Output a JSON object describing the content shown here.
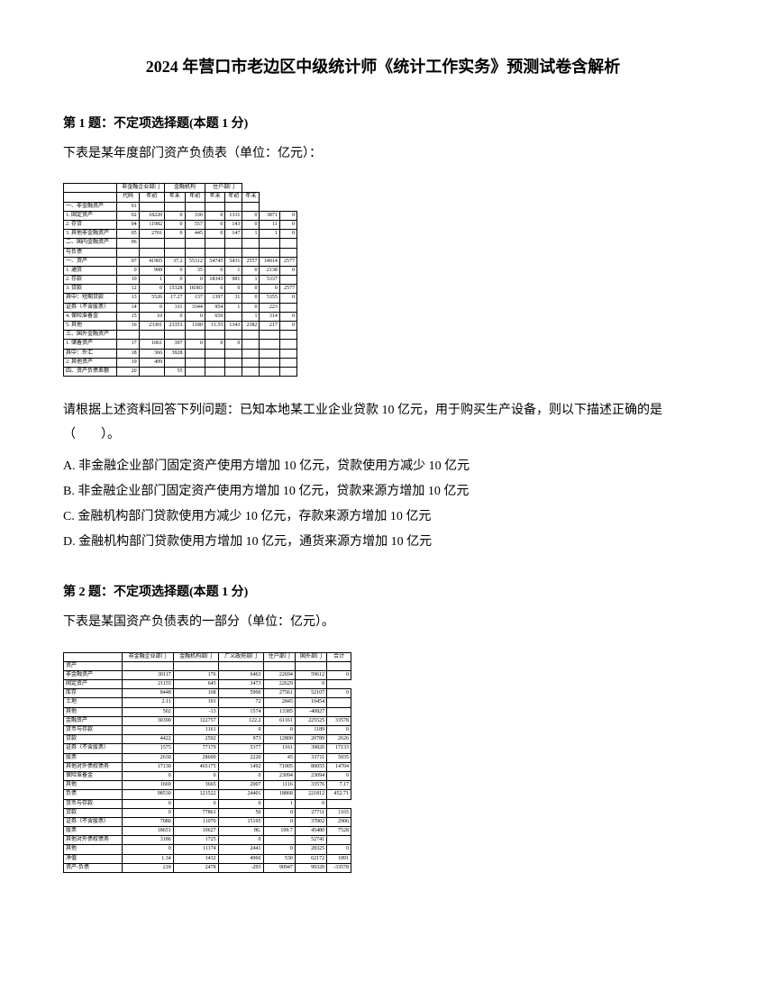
{
  "title": "2024 年营口市老边区中级统计师《统计工作实务》预测试卷含解析",
  "q1": {
    "header": "第 1 题：不定项选择题(本题 1 分)",
    "intro": "下表是某年度部门资产负债表（单位：亿元）：",
    "prompt": "请根据上述资料回答下列问题：已知本地某工业企业贷款 10 亿元，用于购买生产设备，则以下描述正确的是（　　）。",
    "optA": "A. 非金融企业部门固定资产使用方增加 10 亿元，贷款使用方减少 10 亿元",
    "optB": "B. 非金融企业部门固定资产使用方增加 10 亿元，贷款来源方增加 10 亿元",
    "optC": "C. 金融机构部门贷款使用方减少 10 亿元，存款来源方增加 10 亿元",
    "optD": "D. 金融机构部门贷款使用方增加 10 亿元，通货来源方增加 10 亿元",
    "table": {
      "headers_top": [
        "",
        "非金融企业部门",
        "金融机构",
        "住户部门"
      ],
      "headers_sub": [
        "",
        "代码",
        "年初",
        "年末",
        "年初",
        "年末",
        "年初",
        "年末"
      ],
      "rows": [
        [
          "一、非金融资产",
          "01",
          "",
          "",
          "",
          "",
          "",
          ""
        ],
        [
          "1. 固定资产",
          "02",
          "18220",
          "0",
          "330",
          "0",
          "1331",
          "0",
          "3871",
          "0"
        ],
        [
          "2. 存货",
          "04",
          "11982",
          "0",
          "557",
          "0",
          "143",
          "0",
          "11",
          "0"
        ],
        [
          "3. 其他非金融资产",
          "05",
          "2701",
          "0",
          "445",
          "0",
          "147",
          "1",
          "1",
          "0"
        ],
        [
          "二、国内金融资产",
          "06",
          "",
          "",
          "",
          "",
          "",
          "",
          "",
          ""
        ],
        [
          "与负债",
          "",
          "",
          "",
          "",
          "",
          "",
          "",
          "",
          ""
        ],
        [
          "一、资产",
          "07",
          "41905",
          "37.2",
          "55312",
          "54745",
          "5431",
          "2557",
          "14914",
          "2577"
        ],
        [
          "1. 通货",
          "0",
          "908",
          "0",
          "35",
          "0",
          "1",
          "0",
          "2138",
          "0"
        ],
        [
          "2. 存款",
          "10",
          "1",
          "0",
          "0",
          "18343",
          "981",
          "1",
          "5337",
          ""
        ],
        [
          "3. 贷款",
          "12",
          "0",
          "15328",
          "18383",
          "0",
          "0",
          "0",
          "0",
          "2577"
        ],
        [
          " 其中：短期贷款",
          "13",
          "5526",
          "17.27",
          "137",
          "1397",
          "31",
          "0",
          "5355",
          "0"
        ],
        [
          "  证券（不含股票）",
          "14",
          "0",
          "311",
          "3344",
          "954",
          "1",
          "0",
          "223",
          ""
        ],
        [
          "4. 保险准备金",
          "15",
          "10",
          "0",
          "0",
          "659",
          "",
          "1",
          "314",
          "0"
        ],
        [
          "5. 其他",
          "16",
          "23301",
          "23353",
          "1180",
          "11.55",
          "1343",
          "2382",
          "217",
          "0"
        ],
        [
          "三、国外金融资产",
          "",
          "",
          "",
          "",
          "",
          "",
          "",
          "",
          ""
        ],
        [
          "1. 储备资产",
          "17",
          "1061",
          "397",
          "0",
          "0",
          "0",
          "",
          "",
          ""
        ],
        [
          " 其中：外汇",
          "18",
          "366",
          "3928",
          "",
          "",
          "",
          "",
          "",
          ""
        ],
        [
          "2. 其他资产",
          "19",
          "499",
          "",
          "",
          "",
          "",
          "",
          "",
          ""
        ],
        [
          "四、资产负债差额",
          "20",
          "",
          "55",
          "",
          "",
          "",
          "",
          "",
          ""
        ]
      ]
    }
  },
  "q2": {
    "header": "第 2 题：不定项选择题(本题 1 分)",
    "intro": "下表是某国资产负债表的一部分（单位：亿元）。",
    "table": {
      "headers": [
        "",
        "非金融企业部门",
        "金融机构部门",
        "广义政府部门",
        "住户部门",
        "国外部门",
        "合计"
      ],
      "rows": [
        [
          "资产",
          "",
          "",
          "",
          "",
          "",
          ""
        ],
        [
          "非金融资产",
          "30117",
          "176",
          "6463",
          "22694",
          "59612",
          "0"
        ],
        [
          " 固定资产",
          "21155",
          "645",
          "3473",
          "22629",
          "0"
        ],
        [
          " 库存",
          "8448",
          "168",
          "5900",
          "27561",
          "52107",
          "0"
        ],
        [
          " 土地",
          "2.11",
          "191",
          "72",
          "2845",
          "10454",
          ""
        ],
        [
          " 其他",
          "502",
          "-13",
          "1574",
          "13385",
          "-40827",
          ""
        ],
        [
          "金融资产",
          "30390",
          "122757",
          "122.2",
          "61161",
          "225525",
          "33578"
        ],
        [
          " 货币与存款",
          "",
          "1161",
          "0",
          "0",
          "1189",
          "0"
        ],
        [
          " 贷款",
          "4422",
          "2592",
          "973",
          "12800",
          "20789",
          "2626"
        ],
        [
          " 证券（不含股票）",
          "1575",
          "77179",
          "5377",
          "1161",
          "39820",
          "17133"
        ],
        [
          " 股票",
          "2630",
          "28600",
          "2220",
          "45",
          "33711",
          "5935"
        ],
        [
          " 其他对外债权债务",
          "17130",
          "465175",
          "1492",
          "71005",
          "80055",
          "14704"
        ],
        [
          " 保险准备金",
          "0",
          "0",
          "0",
          "23094",
          "23094",
          "0"
        ],
        [
          " 其他",
          "1669",
          "3665",
          "2007",
          "1116",
          "33576",
          "7.17"
        ],
        [
          "负债",
          "98530",
          "121522",
          "24401",
          "18868",
          "221812",
          "452.71"
        ],
        [
          " 货币与存款",
          "0",
          "0",
          "0",
          "1",
          "0"
        ],
        [
          " 贷款",
          "0",
          "77861",
          "50",
          "0",
          "27711",
          "1165"
        ],
        [
          " 证券（不含股票）",
          "7080",
          "11070",
          "15195",
          "0",
          "37002",
          "2906"
        ],
        [
          " 股票",
          "18651",
          "10627",
          "86.",
          "109.7",
          "45480",
          "7528"
        ],
        [
          " 其他对外债权债务",
          "3186",
          "1725",
          "0",
          "",
          "52741",
          ""
        ],
        [
          " 其他",
          "0",
          "11174",
          "2441",
          "0",
          "28325",
          "0"
        ],
        [
          "净值",
          "1.34",
          "1432",
          "4966",
          "530",
          "62172",
          "1891"
        ],
        [
          "资产-负债",
          "218",
          "2478",
          "-293",
          "90947",
          "99320",
          "-33578"
        ]
      ]
    }
  }
}
